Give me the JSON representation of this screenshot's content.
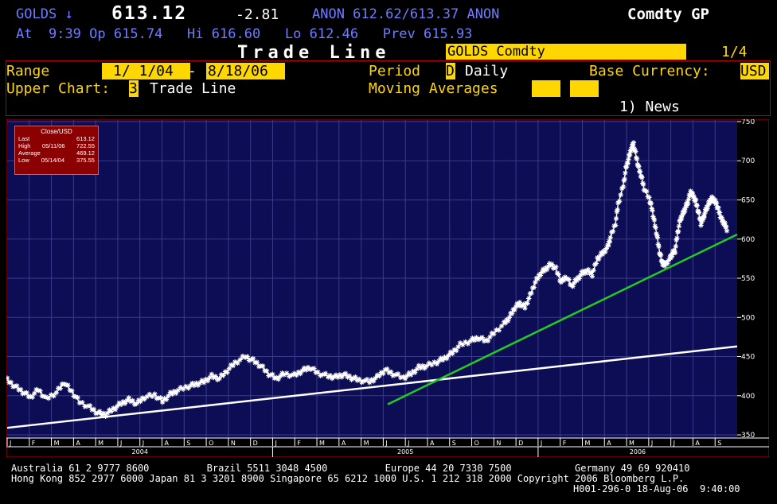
{
  "quote": {
    "ticker": "GOLDS",
    "arrow": "↓",
    "price": "613.12",
    "change": "-2.81",
    "anon": "ANON 612.62/613.37 ANON",
    "product": "Comdty GP",
    "at_label": "At",
    "time": "9:39",
    "op_label": "Op",
    "open": "615.74",
    "hi_label": "Hi",
    "high": "616.60",
    "lo_label": "Lo",
    "low": "612.46",
    "prev_label": "Prev",
    "prev": "615.93"
  },
  "page": {
    "title": "Trade Line",
    "security": "GOLDS Comdty",
    "page_num": "1/4"
  },
  "controls": {
    "range_label": "Range",
    "range_start": "1/ 1/04",
    "range_sep": "-",
    "range_end": "8/18/06",
    "period_label": "Period",
    "period_code": "D",
    "period_text": "Daily",
    "currency_label": "Base Currency:",
    "currency": "USD",
    "upper_label": "Upper Chart:",
    "upper_code": "3",
    "upper_text": "Trade Line",
    "ma_label": "Moving Averages",
    "news": "1) News"
  },
  "legend": {
    "header": "Close/USD",
    "rows": [
      {
        "label": "Last",
        "date": "",
        "value": "613.12"
      },
      {
        "label": "High",
        "date": "05/11/06",
        "value": "722.55"
      },
      {
        "label": "Average",
        "date": "",
        "value": "469.12"
      },
      {
        "label": "Low",
        "date": "05/14/04",
        "value": "375.55"
      }
    ]
  },
  "chart_data": {
    "type": "line",
    "series": [
      {
        "values": [
          [
            2004.0,
            420
          ],
          [
            2004.03,
            412
          ],
          [
            2004.06,
            405
          ],
          [
            2004.09,
            398
          ],
          [
            2004.12,
            408
          ],
          [
            2004.15,
            396
          ],
          [
            2004.19,
            404
          ],
          [
            2004.22,
            417
          ],
          [
            2004.25,
            405
          ],
          [
            2004.28,
            392
          ],
          [
            2004.32,
            385
          ],
          [
            2004.35,
            378
          ],
          [
            2004.38,
            376
          ],
          [
            2004.41,
            383
          ],
          [
            2004.44,
            390
          ],
          [
            2004.47,
            395
          ],
          [
            2004.5,
            390
          ],
          [
            2004.53,
            398
          ],
          [
            2004.57,
            401
          ],
          [
            2004.6,
            393
          ],
          [
            2004.63,
            402
          ],
          [
            2004.66,
            407
          ],
          [
            2004.7,
            412
          ],
          [
            2004.73,
            415
          ],
          [
            2004.76,
            418
          ],
          [
            2004.79,
            425
          ],
          [
            2004.82,
            422
          ],
          [
            2004.85,
            432
          ],
          [
            2004.88,
            442
          ],
          [
            2004.92,
            450
          ],
          [
            2004.95,
            445
          ],
          [
            2004.98,
            438
          ],
          [
            2005.01,
            428
          ],
          [
            2005.04,
            422
          ],
          [
            2005.07,
            428
          ],
          [
            2005.11,
            426
          ],
          [
            2005.14,
            432
          ],
          [
            2005.17,
            436
          ],
          [
            2005.2,
            429
          ],
          [
            2005.24,
            425
          ],
          [
            2005.27,
            424
          ],
          [
            2005.3,
            427
          ],
          [
            2005.33,
            423
          ],
          [
            2005.36,
            420
          ],
          [
            2005.4,
            418
          ],
          [
            2005.43,
            424
          ],
          [
            2005.46,
            433
          ],
          [
            2005.49,
            428
          ],
          [
            2005.53,
            423
          ],
          [
            2005.56,
            428
          ],
          [
            2005.59,
            436
          ],
          [
            2005.62,
            438
          ],
          [
            2005.66,
            443
          ],
          [
            2005.69,
            448
          ],
          [
            2005.72,
            455
          ],
          [
            2005.75,
            465
          ],
          [
            2005.79,
            470
          ],
          [
            2005.82,
            474
          ],
          [
            2005.85,
            470
          ],
          [
            2005.88,
            480
          ],
          [
            2005.92,
            492
          ],
          [
            2005.94,
            500
          ],
          [
            2005.96,
            512
          ],
          [
            2005.98,
            518
          ],
          [
            2006.0,
            513
          ],
          [
            2006.02,
            528
          ],
          [
            2006.04,
            545
          ],
          [
            2006.06,
            556
          ],
          [
            2006.08,
            562
          ],
          [
            2006.1,
            568
          ],
          [
            2006.12,
            562
          ],
          [
            2006.14,
            545
          ],
          [
            2006.16,
            552
          ],
          [
            2006.18,
            540
          ],
          [
            2006.2,
            548
          ],
          [
            2006.22,
            556
          ],
          [
            2006.24,
            560
          ],
          [
            2006.26,
            555
          ],
          [
            2006.28,
            575
          ],
          [
            2006.3,
            582
          ],
          [
            2006.32,
            590
          ],
          [
            2006.33,
            602
          ],
          [
            2006.35,
            620
          ],
          [
            2006.36,
            645
          ],
          [
            2006.38,
            668
          ],
          [
            2006.39,
            690
          ],
          [
            2006.4,
            702
          ],
          [
            2006.41,
            715
          ],
          [
            2006.42,
            722
          ],
          [
            2006.43,
            705
          ],
          [
            2006.44,
            690
          ],
          [
            2006.45,
            680
          ],
          [
            2006.46,
            665
          ],
          [
            2006.48,
            652
          ],
          [
            2006.49,
            640
          ],
          [
            2006.5,
            622
          ],
          [
            2006.51,
            605
          ],
          [
            2006.52,
            584
          ],
          [
            2006.53,
            570
          ],
          [
            2006.54,
            567
          ],
          [
            2006.56,
            575
          ],
          [
            2006.57,
            582
          ],
          [
            2006.58,
            585
          ],
          [
            2006.59,
            608
          ],
          [
            2006.6,
            625
          ],
          [
            2006.61,
            632
          ],
          [
            2006.62,
            640
          ],
          [
            2006.63,
            648
          ],
          [
            2006.64,
            660
          ],
          [
            2006.65,
            655
          ],
          [
            2006.66,
            648
          ],
          [
            2006.67,
            635
          ],
          [
            2006.68,
            620
          ],
          [
            2006.69,
            628
          ],
          [
            2006.7,
            638
          ],
          [
            2006.71,
            645
          ],
          [
            2006.72,
            652
          ],
          [
            2006.73,
            650
          ],
          [
            2006.74,
            645
          ],
          [
            2006.75,
            635
          ],
          [
            2006.76,
            625
          ],
          [
            2006.77,
            620
          ],
          [
            2006.78,
            613
          ]
        ],
        "color": "#ffffff",
        "marker": "star"
      }
    ],
    "trend_lines": [
      {
        "from": [
          2004.0,
          359
        ],
        "to": [
          2006.82,
          463
        ],
        "color": "#ffffff"
      },
      {
        "from": [
          2005.47,
          389
        ],
        "to": [
          2006.82,
          606
        ],
        "color": "#22cc22"
      }
    ],
    "x_range": [
      2004.0,
      2006.82
    ],
    "ylim": [
      346,
      752
    ],
    "y_ticks": [
      350,
      400,
      450,
      500,
      550,
      600,
      650,
      700,
      750
    ],
    "month_ticks": [
      "J",
      "F",
      "M",
      "A",
      "M",
      "J",
      "J",
      "A",
      "S",
      "O",
      "N",
      "D",
      "J",
      "F",
      "M",
      "A",
      "M",
      "J",
      "J",
      "A",
      "S",
      "O",
      "N",
      "D",
      "J",
      "F",
      "M",
      "A",
      "M",
      "J",
      "J",
      "A",
      "S"
    ],
    "year_labels": [
      "2004",
      "2005",
      "2006"
    ],
    "grid": true,
    "legend_placement": "top-left"
  },
  "footer": {
    "line1": "Australia 61 2 9777 8600          Brazil 5511 3048 4500          Europe 44 20 7330 7500           Germany 49 69 920410",
    "line2": "Hong Kong 852 2977 6000 Japan 81 3 3201 8900 Singapore 65 6212 1000 U.S. 1 212 318 2000 Copyright 2006 Bloomberg L.P.",
    "line3": "H001-296-0 18-Aug-06  9:40:00"
  },
  "colors": {
    "chart_bg": "#0d0d55",
    "grid": "#3a3a8a",
    "accent": "#ffd700",
    "frame": "#c00000",
    "quote_text": "#6e7cff"
  }
}
